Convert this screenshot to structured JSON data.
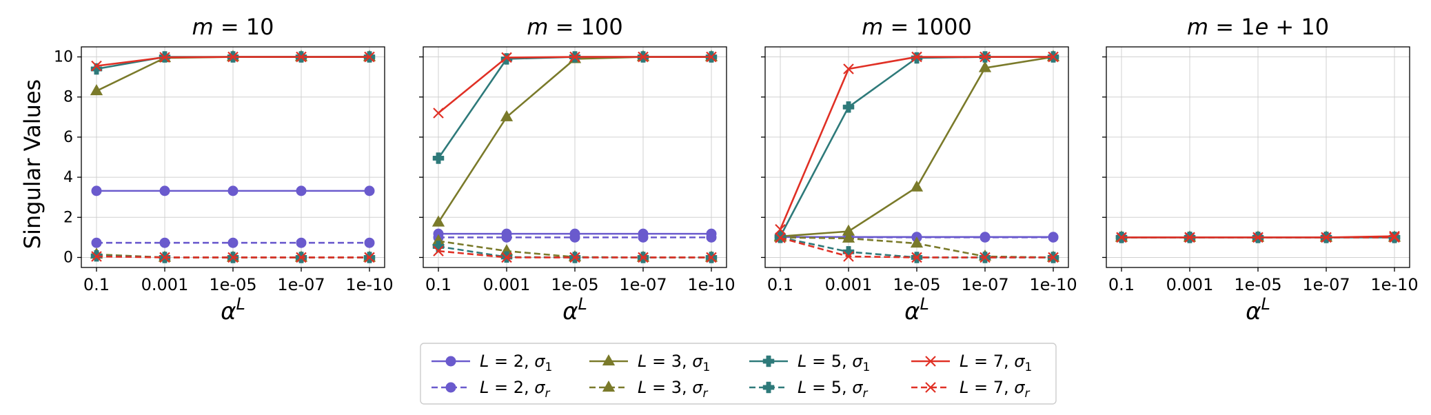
{
  "figure": {
    "ylabel": "Singular Values",
    "xlabel_base": "α",
    "xlabel_sup": "L"
  },
  "chart_data": {
    "type": "line",
    "x_categories": [
      "0.1",
      "0.001",
      "1e-05",
      "1e-07",
      "1e-10"
    ],
    "ylim": [
      -0.5,
      10.5
    ],
    "yticks": [
      0,
      2,
      4,
      6,
      8,
      10
    ],
    "grid": true,
    "legend_placement": "bottom-center",
    "series_styles": [
      {
        "key": "L2_s1",
        "L": "2",
        "sigma": "1",
        "color": "#6a5acd",
        "marker": "circle",
        "dashed": false
      },
      {
        "key": "L2_sr",
        "L": "2",
        "sigma": "r",
        "color": "#6a5acd",
        "marker": "circle",
        "dashed": true
      },
      {
        "key": "L3_s1",
        "L": "3",
        "sigma": "1",
        "color": "#7a7a2a",
        "marker": "triangle",
        "dashed": false
      },
      {
        "key": "L3_sr",
        "L": "3",
        "sigma": "r",
        "color": "#7a7a2a",
        "marker": "triangle",
        "dashed": true
      },
      {
        "key": "L5_s1",
        "L": "5",
        "sigma": "1",
        "color": "#2e7a7a",
        "marker": "plus",
        "dashed": false
      },
      {
        "key": "L5_sr",
        "L": "5",
        "sigma": "r",
        "color": "#2e7a7a",
        "marker": "plus",
        "dashed": true
      },
      {
        "key": "L7_s1",
        "L": "7",
        "sigma": "1",
        "color": "#e03025",
        "marker": "x",
        "dashed": false
      },
      {
        "key": "L7_sr",
        "L": "7",
        "sigma": "r",
        "color": "#e03025",
        "marker": "x",
        "dashed": true
      }
    ],
    "panels": [
      {
        "m": "10",
        "series": {
          "L2_s1": [
            3.32,
            3.32,
            3.32,
            3.32,
            3.32
          ],
          "L2_sr": [
            0.73,
            0.73,
            0.73,
            0.73,
            0.73
          ],
          "L3_s1": [
            8.3,
            9.95,
            10.0,
            10.0,
            10.0
          ],
          "L3_sr": [
            0.15,
            0.0,
            0.0,
            0.0,
            0.0
          ],
          "L5_s1": [
            9.4,
            10.0,
            10.0,
            10.0,
            10.0
          ],
          "L5_sr": [
            0.08,
            0.0,
            0.0,
            0.0,
            0.0
          ],
          "L7_s1": [
            9.55,
            9.98,
            10.0,
            10.0,
            10.0
          ],
          "L7_sr": [
            0.05,
            0.0,
            0.0,
            0.0,
            0.0
          ]
        }
      },
      {
        "m": "100",
        "series": {
          "L2_s1": [
            1.18,
            1.18,
            1.18,
            1.18,
            1.18
          ],
          "L2_sr": [
            1.0,
            1.0,
            1.0,
            1.0,
            1.0
          ],
          "L3_s1": [
            1.75,
            7.0,
            9.9,
            10.0,
            10.0
          ],
          "L3_sr": [
            0.82,
            0.32,
            0.02,
            0.0,
            0.0
          ],
          "L5_s1": [
            4.95,
            9.9,
            10.0,
            10.0,
            10.0
          ],
          "L5_sr": [
            0.55,
            0.02,
            0.0,
            0.0,
            0.0
          ],
          "L7_s1": [
            7.2,
            9.97,
            10.0,
            10.0,
            10.0
          ],
          "L7_sr": [
            0.32,
            0.0,
            0.0,
            0.0,
            0.0
          ]
        }
      },
      {
        "m": "1000",
        "series": {
          "L2_s1": [
            1.02,
            1.02,
            1.02,
            1.02,
            1.02
          ],
          "L2_sr": [
            1.0,
            1.0,
            1.0,
            1.0,
            1.0
          ],
          "L3_s1": [
            1.05,
            1.3,
            3.5,
            9.45,
            10.0
          ],
          "L3_sr": [
            1.0,
            0.95,
            0.7,
            0.05,
            0.0
          ],
          "L5_s1": [
            1.05,
            7.5,
            9.95,
            10.0,
            10.0
          ],
          "L5_sr": [
            1.0,
            0.28,
            0.0,
            0.0,
            0.0
          ],
          "L7_s1": [
            1.4,
            9.4,
            10.0,
            10.0,
            10.0
          ],
          "L7_sr": [
            0.98,
            0.05,
            0.0,
            0.0,
            0.0
          ]
        }
      },
      {
        "m": "1e+10",
        "series": {
          "L2_s1": [
            1.0,
            1.0,
            1.0,
            1.0,
            1.0
          ],
          "L2_sr": [
            1.0,
            1.0,
            1.0,
            1.0,
            1.0
          ],
          "L3_s1": [
            1.0,
            1.0,
            1.0,
            1.0,
            1.0
          ],
          "L3_sr": [
            1.0,
            1.0,
            1.0,
            1.0,
            1.0
          ],
          "L5_s1": [
            1.0,
            1.0,
            1.0,
            1.0,
            1.0
          ],
          "L5_sr": [
            1.0,
            1.0,
            1.0,
            1.0,
            1.0
          ],
          "L7_s1": [
            1.0,
            1.0,
            1.0,
            1.0,
            1.06
          ],
          "L7_sr": [
            1.0,
            1.0,
            1.0,
            1.0,
            1.0
          ]
        }
      }
    ]
  }
}
